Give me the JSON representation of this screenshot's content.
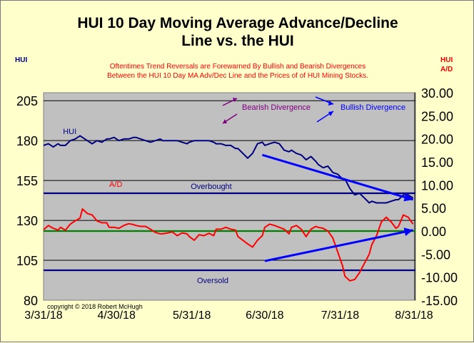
{
  "colors": {
    "background": "#ffffcc",
    "plot_area": "#c0c0c0",
    "hui_line": "#000080",
    "ad_line": "#ff0000",
    "title_text": "#000000",
    "note_text": "#ff0000",
    "reference_line": "#000080",
    "zero_line": "#008000",
    "divergence_arrow": "#0000ff",
    "bearish_arrow": "#800080",
    "bullish_arrow": "#0000ff"
  },
  "chart_data": {
    "type": "line",
    "title": "HUI 10 Day Moving Average Advance/Decline Line vs. the HUI",
    "title_lines": [
      "HUI 10 Day Moving Average Advance/Decline",
      "Line vs. the HUI"
    ],
    "subtitle_lines": [
      "Oftentimes Trend Reversals are Forewarned By Bullish and Bearish Divergences",
      "Between the HUI 10 Day MA Adv/Dec Line and the Prices of of HUI Mining Stocks."
    ],
    "left_axis_label": "HUI",
    "right_axis_label_lines": [
      "HUI",
      "A/D"
    ],
    "x_ticks": [
      "3/31/18",
      "4/30/18",
      "5/31/18",
      "6/30/18",
      "7/31/18",
      "8/31/18"
    ],
    "xlim": [
      0,
      153
    ],
    "left_ylim": [
      80,
      210
    ],
    "left_ticks": [
      80,
      105,
      130,
      155,
      180,
      205
    ],
    "right_ylim": [
      -15,
      30
    ],
    "right_ticks": [
      "-15.00",
      "-10.00",
      "-5.00",
      "0.00",
      "5.00",
      "10.00",
      "15.00",
      "20.00",
      "25.00",
      "30.00"
    ],
    "grid": true,
    "series": [
      {
        "name": "HUI",
        "axis": "left",
        "x": [
          0,
          2,
          4,
          6,
          7,
          9,
          11,
          13,
          15,
          16,
          18,
          20,
          22,
          24,
          26,
          27,
          29,
          31,
          33,
          35,
          37,
          38,
          40,
          42,
          44,
          46,
          48,
          49,
          51,
          53,
          55,
          57,
          59,
          60,
          62,
          64,
          66,
          68,
          70,
          71,
          73,
          75,
          77,
          79,
          80,
          82,
          84,
          86,
          88,
          90,
          91,
          93,
          95,
          97,
          99,
          101,
          102,
          104,
          106,
          108,
          110,
          112,
          113,
          115,
          117,
          119,
          121,
          123,
          124,
          126,
          128,
          130,
          132,
          134,
          135,
          137,
          139,
          141,
          143,
          145,
          146,
          148,
          150,
          152
        ],
        "values": [
          177,
          178,
          176,
          178,
          177,
          177,
          180,
          181,
          183,
          182,
          180,
          178,
          180,
          179,
          181,
          181,
          182,
          180,
          181,
          181,
          182,
          182,
          181,
          180,
          179,
          180,
          181,
          180,
          180,
          180,
          180,
          179,
          178,
          179,
          180,
          180,
          180,
          180,
          179,
          178,
          178,
          177,
          177,
          175,
          175,
          172,
          169,
          172,
          178,
          179,
          177,
          178,
          179,
          178,
          174,
          173,
          174,
          172,
          171,
          168,
          170,
          167,
          165,
          163,
          164,
          160,
          159,
          156,
          156,
          150,
          146,
          147,
          144,
          141,
          142,
          141,
          141,
          141,
          142,
          143,
          143,
          146,
          146,
          144
        ]
      },
      {
        "name": "A/D",
        "axis": "right",
        "x": [
          0,
          2,
          4,
          6,
          7,
          9,
          11,
          13,
          15,
          16,
          18,
          20,
          22,
          24,
          26,
          27,
          29,
          31,
          33,
          35,
          37,
          38,
          40,
          42,
          44,
          46,
          48,
          49,
          51,
          53,
          55,
          57,
          59,
          60,
          62,
          64,
          66,
          68,
          70,
          71,
          73,
          75,
          77,
          79,
          80,
          82,
          84,
          86,
          88,
          90,
          91,
          93,
          95,
          97,
          99,
          101,
          102,
          104,
          106,
          108,
          110,
          112,
          113,
          115,
          117,
          119,
          121,
          123,
          124,
          126,
          128,
          130,
          132,
          134,
          135,
          137,
          139,
          141,
          143,
          145,
          146,
          148,
          150,
          152
        ],
        "values": [
          0.3,
          1.2,
          0.6,
          0.2,
          0.8,
          0.2,
          1.5,
          2.2,
          2.8,
          4.8,
          3.8,
          3.5,
          2.2,
          1.8,
          1.8,
          0.8,
          0.8,
          0.6,
          1.2,
          1.6,
          1.4,
          1.2,
          1.0,
          1.0,
          0.4,
          -0.3,
          -0.6,
          -0.6,
          -0.4,
          -0.2,
          -1.0,
          -0.4,
          -0.6,
          -1.2,
          -2.0,
          -0.8,
          -1.0,
          -0.5,
          -1.0,
          0.4,
          0.4,
          0.8,
          0.4,
          0.2,
          -1.2,
          -2.0,
          -2.8,
          -3.5,
          -2.0,
          -1.0,
          0.8,
          1.5,
          1.2,
          0.8,
          0.4,
          -0.6,
          0.8,
          1.2,
          0.4,
          -1.2,
          0.4,
          1.0,
          0.8,
          0.6,
          0.0,
          -1.5,
          -4.5,
          -7.5,
          -9.8,
          -10.8,
          -10.5,
          -9.0,
          -7.0,
          -5.0,
          -3.0,
          -1.0,
          2.0,
          3.0,
          2.0,
          0.6,
          1.0,
          3.5,
          3.0,
          1.5
        ]
      }
    ],
    "reference_lines": [
      {
        "label": "Overbought",
        "axis": "right",
        "value": 8.2
      },
      {
        "label": "Oversold",
        "axis": "right",
        "value": -8.5
      },
      {
        "label": "",
        "axis": "right",
        "value": 0
      }
    ],
    "series_labels": [
      {
        "text": "HUI",
        "x": 8,
        "value": 184,
        "axis": "left"
      },
      {
        "text": "A/D",
        "x": 27,
        "value": 9.6,
        "axis": "right"
      }
    ],
    "annotations": [
      {
        "text": "Bearish Divergence",
        "kind": "legend-arrow"
      },
      {
        "text": "Bullish Divergence",
        "kind": "legend-arrow"
      },
      {
        "text": "copyright © 2018  Robert  McHugh",
        "kind": "credit"
      }
    ],
    "divergence_lines": [
      {
        "name": "hui-divergence",
        "axis": "left",
        "from": [
          90,
          171
        ],
        "to": [
          152,
          143
        ]
      },
      {
        "name": "ad-divergence",
        "axis": "right",
        "from": [
          91,
          -6.5
        ],
        "to": [
          152,
          0.2
        ]
      }
    ]
  }
}
